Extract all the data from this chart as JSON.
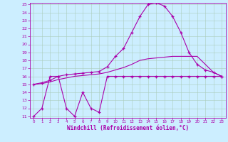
{
  "xlabel": "Windchill (Refroidissement éolien,°C)",
  "bg_color": "#cceeff",
  "grid_color": "#aaccbb",
  "line_color": "#aa00aa",
  "ylim": [
    11,
    25
  ],
  "xlim": [
    -0.5,
    23.5
  ],
  "yticks": [
    11,
    12,
    13,
    14,
    15,
    16,
    17,
    18,
    19,
    20,
    21,
    22,
    23,
    24,
    25
  ],
  "xticks": [
    0,
    1,
    2,
    3,
    4,
    5,
    6,
    7,
    8,
    9,
    10,
    11,
    12,
    13,
    14,
    15,
    16,
    17,
    18,
    19,
    20,
    21,
    22,
    23
  ],
  "line1_x": [
    0,
    1,
    2,
    3,
    4,
    5,
    6,
    7,
    8,
    9,
    10,
    11,
    12,
    13,
    14,
    15,
    16,
    17,
    18,
    19,
    20,
    21,
    22,
    23
  ],
  "line1_y": [
    11,
    12,
    16,
    16,
    12,
    11,
    14,
    12,
    11.5,
    16,
    16,
    16,
    16,
    16,
    16,
    16,
    16,
    16,
    16,
    16,
    16,
    16,
    16,
    16
  ],
  "line2_x": [
    0,
    1,
    2,
    3,
    4,
    5,
    6,
    7,
    8,
    9,
    10,
    11,
    12,
    13,
    14,
    15,
    16,
    17,
    18,
    19,
    20,
    21,
    22,
    23
  ],
  "line2_y": [
    15,
    15.1,
    15.3,
    15.6,
    15.8,
    16.0,
    16.1,
    16.2,
    16.3,
    16.5,
    16.8,
    17.1,
    17.5,
    18.0,
    18.2,
    18.3,
    18.4,
    18.5,
    18.5,
    18.5,
    18.5,
    17.5,
    16.5,
    16.0
  ],
  "line3_x": [
    0,
    1,
    2,
    3,
    4,
    5,
    6,
    7,
    8,
    9,
    10,
    11,
    12,
    13,
    14,
    15,
    16,
    17,
    18,
    19,
    20,
    21,
    22,
    23
  ],
  "line3_y": [
    15,
    15.2,
    15.5,
    16.0,
    16.2,
    16.3,
    16.4,
    16.5,
    16.6,
    17.2,
    18.5,
    19.5,
    21.5,
    23.5,
    25.0,
    25.2,
    24.8,
    23.5,
    21.5,
    19.0,
    17.5,
    16.8,
    16.5,
    16.0
  ]
}
